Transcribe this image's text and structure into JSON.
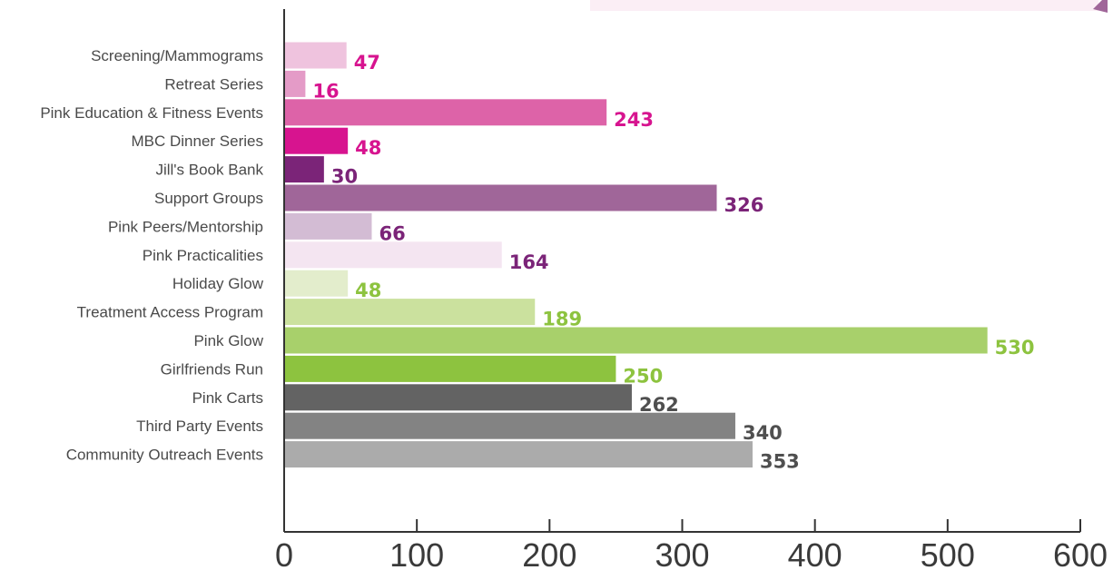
{
  "chart_data": {
    "type": "bar",
    "orientation": "horizontal",
    "title": "",
    "xlabel": "",
    "ylabel": "",
    "xlim": [
      0,
      600
    ],
    "x_ticks": [
      0,
      100,
      200,
      300,
      400,
      500,
      600
    ],
    "grid": false,
    "categories": [
      "Screening/Mammograms",
      "Retreat Series",
      "Pink Education & Fitness Events",
      "MBC Dinner Series",
      "Jill's Book Bank",
      "Support Groups",
      "Pink Peers/Mentorship",
      "Pink Practicalities",
      "Holiday Glow",
      "Treatment Access Program",
      "Pink Glow",
      "Girlfriends Run",
      "Pink Carts",
      "Third Party Events",
      "Community Outreach Events"
    ],
    "values": [
      47,
      16,
      243,
      48,
      30,
      326,
      66,
      164,
      48,
      189,
      530,
      250,
      262,
      340,
      353
    ],
    "bar_colors": [
      "#efc3de",
      "#e49bc7",
      "#dd63a8",
      "#d7148f",
      "#7b2478",
      "#a06699",
      "#d3bcd4",
      "#f4e5f1",
      "#e3edcc",
      "#cbe19e",
      "#a8d06b",
      "#8dc33f",
      "#636363",
      "#838383",
      "#ababab"
    ],
    "label_colors": [
      "#d7148f",
      "#d7148f",
      "#d7148f",
      "#d7148f",
      "#7b2478",
      "#7b2478",
      "#7b2478",
      "#7b2478",
      "#8dc33f",
      "#8dc33f",
      "#8dc33f",
      "#8dc33f",
      "#4f4f4f",
      "#4f4f4f",
      "#4f4f4f"
    ],
    "axis_color": "#333333",
    "top_box_color": "#fbeef5"
  }
}
